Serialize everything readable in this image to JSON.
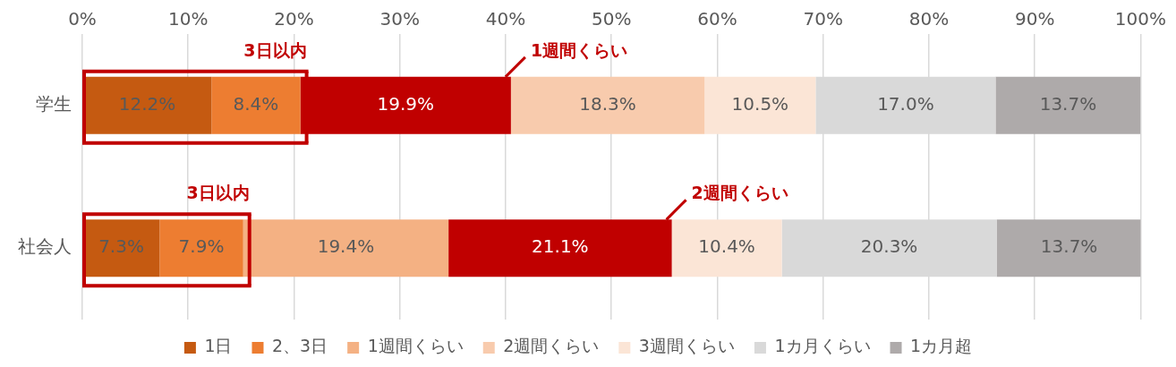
{
  "chart_data": {
    "type": "bar",
    "orientation": "horizontal",
    "stacked": true,
    "categories": [
      "学生",
      "社会人"
    ],
    "xlim": [
      0,
      100
    ],
    "xticks": [
      {
        "value": 0,
        "label": "0%"
      },
      {
        "value": 10,
        "label": "10%"
      },
      {
        "value": 20,
        "label": "20%"
      },
      {
        "value": 30,
        "label": "30%"
      },
      {
        "value": 40,
        "label": "40%"
      },
      {
        "value": 50,
        "label": "50%"
      },
      {
        "value": 60,
        "label": "60%"
      },
      {
        "value": 70,
        "label": "70%"
      },
      {
        "value": 80,
        "label": "80%"
      },
      {
        "value": 90,
        "label": "90%"
      },
      {
        "value": 100,
        "label": "100%"
      }
    ],
    "grid": "x",
    "legend": "bottom",
    "series": [
      {
        "name": "1日",
        "color": "#c55a11",
        "colors": [
          "#c55a11",
          "#c55a11"
        ],
        "values": [
          12.2,
          7.3
        ],
        "value_labels": [
          "12.2%",
          "7.3%"
        ]
      },
      {
        "name": "2、3日",
        "color": "#ed7d31",
        "colors": [
          "#ed7d31",
          "#ed7d31"
        ],
        "values": [
          8.4,
          7.9
        ],
        "value_labels": [
          "8.4%",
          "7.9%"
        ]
      },
      {
        "name": "1週間くらい",
        "color": "#f4b183",
        "colors": [
          "#c00000",
          "#f4b183"
        ],
        "values": [
          19.9,
          19.4
        ],
        "value_labels": [
          "19.9%",
          "19.4%"
        ]
      },
      {
        "name": "2週間くらい",
        "color": "#f8cbad",
        "colors": [
          "#f8cbad",
          "#c00000"
        ],
        "values": [
          18.3,
          21.1
        ],
        "value_labels": [
          "18.3%",
          "21.1%"
        ]
      },
      {
        "name": "3週間くらい",
        "color": "#fbe5d6",
        "colors": [
          "#fbe5d6",
          "#fbe5d6"
        ],
        "values": [
          10.5,
          10.4
        ],
        "value_labels": [
          "10.5%",
          "10.4%"
        ]
      },
      {
        "name": "1カ月くらい",
        "color": "#d9d9d9",
        "colors": [
          "#d9d9d9",
          "#d9d9d9"
        ],
        "values": [
          17.0,
          20.3
        ],
        "value_labels": [
          "17.0%",
          "20.3%"
        ]
      },
      {
        "name": "1カ月超",
        "color": "#aeaaaa",
        "colors": [
          "#aeaaaa",
          "#aeaaaa"
        ],
        "values": [
          13.7,
          13.7
        ],
        "value_labels": [
          "13.7%",
          "13.7%"
        ]
      }
    ],
    "annotations": [
      "3日以内",
      "1週間くらい",
      "3日以内",
      "2週間くらい"
    ]
  }
}
